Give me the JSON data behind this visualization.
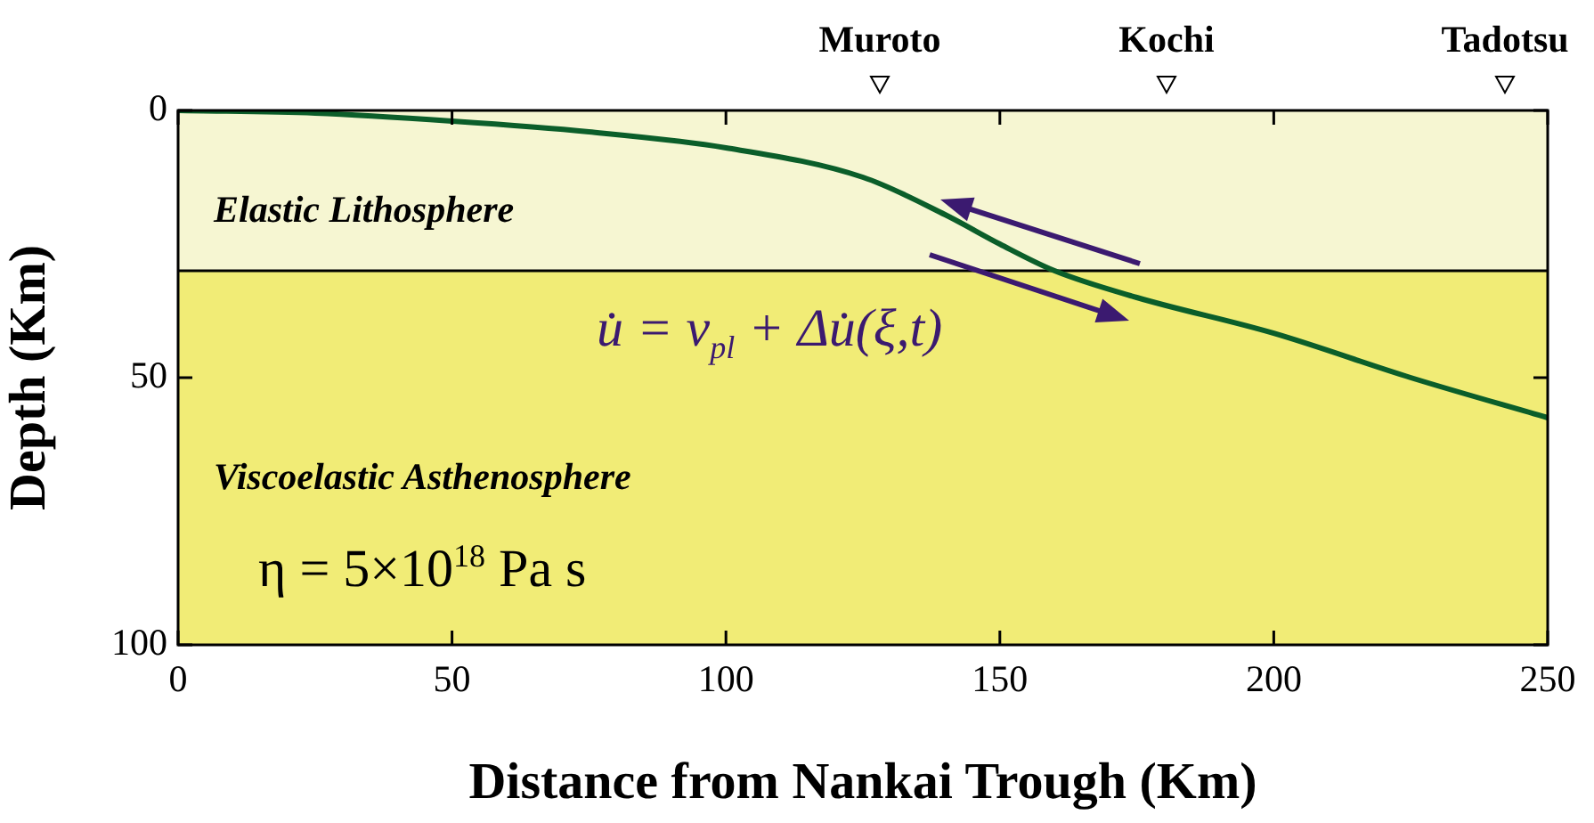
{
  "chart_data": {
    "type": "line",
    "xlabel": "Distance from Nankai Trough (Km)",
    "ylabel": "Depth (Km)",
    "x": [
      0,
      25,
      50,
      75,
      100,
      125,
      140,
      150,
      160,
      175,
      200,
      225,
      250
    ],
    "series": [
      {
        "color": "#0b5e2a",
        "values": [
          0,
          0.5,
          2,
          4,
          7,
          12.5,
          19.5,
          25,
          30,
          35,
          41.7,
          50,
          57.5
        ]
      }
    ],
    "xlim": [
      0,
      250
    ],
    "xticks": [
      0,
      50,
      100,
      150,
      200,
      250
    ],
    "ylim": [
      100,
      0
    ],
    "yticks": [
      0,
      50,
      100
    ],
    "bands": [
      {
        "axis": "y",
        "from": 0,
        "to": 30,
        "label": "Elastic Lithosphere",
        "color": "#f6f6d2"
      },
      {
        "axis": "y",
        "from": 30,
        "to": 100,
        "label": "Viscoelastic Asthenosphere",
        "color": "#f1ec76"
      }
    ],
    "annotations": [
      "u̇ = v$_{pl}$ + Δu̇(ξ,t)",
      "η = 5×10$^{18}$ Pa s",
      "Muroto",
      "Kochi",
      "Tadotsu"
    ],
    "ref_lines": [
      {
        "axis": "y",
        "value": 30,
        "color": "#000000"
      }
    ],
    "legend": false,
    "marker": "none",
    "line_style": "solid"
  }
}
